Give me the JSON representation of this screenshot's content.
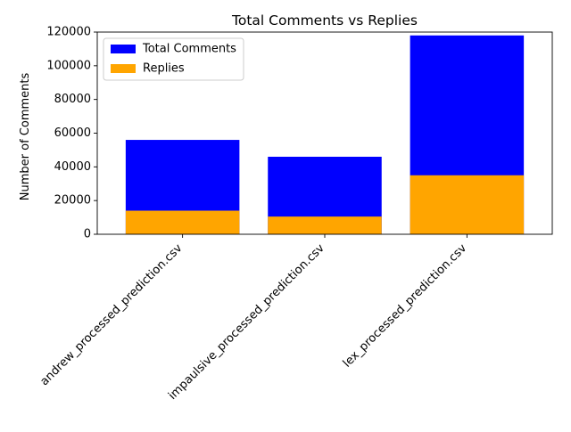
{
  "chart_data": {
    "type": "bar",
    "title": "Total Comments vs Replies",
    "xlabel": "",
    "ylabel": "Number of Comments",
    "categories": [
      "andrew_processed_prediction.csv",
      "impaulsive_processed_prediction.csv",
      "lex_processed_prediction.csv"
    ],
    "series": [
      {
        "name": "Total Comments",
        "color": "#0000ff",
        "values": [
          56000,
          46000,
          118000
        ]
      },
      {
        "name": "Replies",
        "color": "#ffa500",
        "values": [
          14000,
          10500,
          35000
        ]
      }
    ],
    "ylim": [
      0,
      120000
    ],
    "yticks": [
      0,
      20000,
      40000,
      60000,
      80000,
      100000,
      120000
    ],
    "grid": false,
    "legend_position": "top-left"
  }
}
